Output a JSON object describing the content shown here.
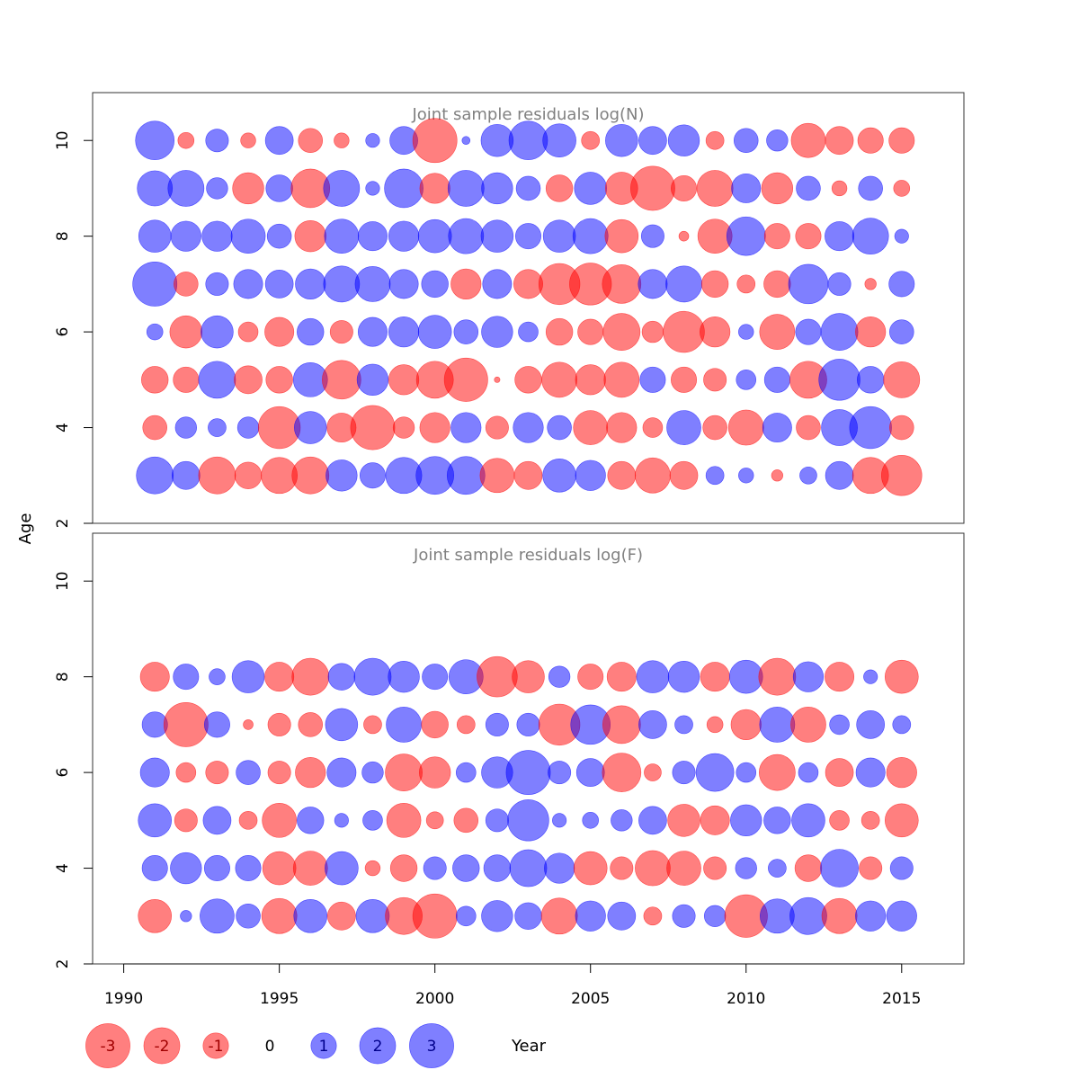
{
  "colors": {
    "negative": "#ff0000",
    "positive": "#0000ff",
    "frame": "#333333",
    "title": "#808080"
  },
  "chart_data": [
    {
      "type": "scatter",
      "subtype": "bubble",
      "title": "Joint sample residuals log(N)",
      "xlabel": "Year",
      "ylabel": "Age",
      "xlim": [
        1989,
        2017
      ],
      "ylim": [
        2,
        11
      ],
      "x_ticks": [
        "1990",
        "1995",
        "2000",
        "2005",
        "2010",
        "2015"
      ],
      "y_ticks": [
        "2",
        "4",
        "6",
        "8",
        "10"
      ],
      "years": [
        1991,
        1992,
        1993,
        1994,
        1995,
        1996,
        1997,
        1998,
        1999,
        2000,
        2001,
        2002,
        2003,
        2004,
        2005,
        2006,
        2007,
        2008,
        2009,
        2010,
        2011,
        2012,
        2013,
        2014,
        2015
      ],
      "residuals": {
        "10": [
          2.3,
          -0.4,
          0.8,
          -0.35,
          1.2,
          -0.9,
          -0.35,
          0.3,
          1.2,
          -3.0,
          0.1,
          1.6,
          2.3,
          1.7,
          -0.5,
          1.6,
          1.2,
          1.5,
          -0.5,
          0.9,
          0.7,
          -1.8,
          -1.2,
          -1.0,
          -1.0
        ],
        "9": [
          1.9,
          2.0,
          0.7,
          -1.5,
          1.1,
          -2.3,
          2.0,
          0.3,
          2.3,
          -1.4,
          2.0,
          1.5,
          0.9,
          -1.1,
          1.6,
          -1.6,
          -3.0,
          -1.0,
          -2.0,
          1.3,
          -1.5,
          0.9,
          -0.35,
          0.9,
          -0.4
        ],
        "8": [
          1.6,
          1.4,
          1.4,
          1.8,
          0.9,
          -1.5,
          1.8,
          1.3,
          1.4,
          1.7,
          1.9,
          1.6,
          1.0,
          1.6,
          1.9,
          -1.7,
          0.8,
          -0.15,
          -1.8,
          2.3,
          -1.0,
          -1.0,
          1.3,
          2.0,
          0.3
        ],
        "7": [
          3.0,
          -0.9,
          0.8,
          1.3,
          1.2,
          1.4,
          2.0,
          1.9,
          1.3,
          1.1,
          -1.4,
          1.3,
          -1.3,
          -2.6,
          -2.7,
          -2.3,
          1.3,
          2.0,
          -1.1,
          -0.5,
          -1.1,
          2.4,
          0.8,
          -0.2,
          1.0
        ],
        "6": [
          0.4,
          -1.6,
          1.6,
          -0.6,
          -1.3,
          1.1,
          -0.8,
          1.3,
          1.4,
          1.7,
          0.9,
          1.5,
          0.6,
          -1.1,
          -1.0,
          -2.1,
          -0.7,
          -2.6,
          -1.4,
          0.35,
          -1.9,
          1.0,
          2.1,
          -1.4,
          0.9
        ],
        "5": [
          -1.1,
          -1.0,
          2.1,
          -1.2,
          -1.1,
          1.8,
          -2.3,
          1.5,
          -1.4,
          -2.1,
          -2.9,
          -0.05,
          -1.1,
          -1.9,
          -1.4,
          -1.9,
          1.0,
          -1.0,
          -0.8,
          0.6,
          1.0,
          -2.1,
          2.6,
          1.1,
          -2.0
        ],
        "4": [
          -0.9,
          0.7,
          0.5,
          0.7,
          -2.7,
          1.6,
          -1.3,
          -3.0,
          -0.7,
          -1.4,
          1.4,
          -0.8,
          1.4,
          0.9,
          -1.8,
          -1.4,
          -0.6,
          1.8,
          -0.9,
          -1.9,
          1.3,
          -0.9,
          2.0,
          2.7,
          -0.9
        ],
        "3": [
          2.1,
          1.2,
          -2.1,
          -1.1,
          -2.0,
          -2.1,
          1.5,
          1.0,
          2.0,
          2.2,
          2.2,
          -1.8,
          -1.2,
          1.7,
          1.4,
          -1.2,
          -1.9,
          -1.2,
          0.5,
          0.35,
          -0.2,
          0.45,
          1.2,
          -2.0,
          -2.5
        ]
      }
    },
    {
      "type": "scatter",
      "subtype": "bubble",
      "title": "Joint sample residuals log(F)",
      "xlabel": "Year",
      "ylabel": "Age",
      "xlim": [
        1989,
        2017
      ],
      "ylim": [
        2,
        11
      ],
      "x_ticks": [
        "1990",
        "1995",
        "2000",
        "2005",
        "2010",
        "2015"
      ],
      "y_ticks": [
        "2",
        "4",
        "6",
        "8",
        "10"
      ],
      "years": [
        1991,
        1992,
        1993,
        1994,
        1995,
        1996,
        1997,
        1998,
        1999,
        2000,
        2001,
        2002,
        2003,
        2004,
        2005,
        2006,
        2007,
        2008,
        2009,
        2010,
        2011,
        2012,
        2013,
        2014,
        2015
      ],
      "residuals": {
        "8": [
          -1.3,
          1.0,
          0.4,
          1.6,
          -1.3,
          -2.1,
          1.1,
          2.1,
          1.5,
          1.0,
          1.8,
          -2.5,
          -1.6,
          0.7,
          -1.0,
          -1.3,
          1.6,
          1.5,
          -1.3,
          1.7,
          -2.1,
          1.4,
          -1.3,
          0.3,
          -1.7
        ],
        "7": [
          1.0,
          -3.0,
          1.0,
          -0.15,
          -0.8,
          -0.9,
          1.6,
          -0.5,
          1.9,
          -1.1,
          -0.5,
          0.8,
          0.8,
          -2.6,
          2.4,
          -2.2,
          1.2,
          0.5,
          -0.4,
          -1.4,
          1.9,
          -1.9,
          0.6,
          1.2,
          0.5
        ],
        "6": [
          1.3,
          -0.6,
          -0.8,
          0.9,
          -0.8,
          -1.4,
          1.3,
          0.7,
          -2.1,
          -1.5,
          0.6,
          1.5,
          3.0,
          0.8,
          1.2,
          -2.3,
          -0.45,
          0.8,
          2.2,
          0.6,
          -2.0,
          0.6,
          -1.2,
          1.3,
          -1.4
        ],
        "5": [
          1.7,
          -0.8,
          1.2,
          -0.5,
          -1.8,
          1.1,
          0.3,
          0.6,
          -1.8,
          -0.45,
          -0.9,
          0.8,
          2.6,
          0.3,
          0.4,
          0.7,
          1.2,
          -1.6,
          -1.3,
          1.5,
          1.1,
          1.7,
          -0.6,
          -0.5,
          -1.7
        ],
        "4": [
          1.0,
          1.5,
          1.0,
          1.0,
          -1.7,
          -1.8,
          1.7,
          -0.35,
          -1.1,
          0.8,
          1.1,
          1.1,
          2.1,
          1.4,
          -1.7,
          -0.8,
          -1.9,
          -1.8,
          -0.8,
          0.7,
          0.5,
          -1.1,
          2.2,
          -0.8,
          0.8
        ],
        "3": [
          -1.7,
          0.2,
          1.8,
          0.9,
          -1.9,
          1.7,
          -1.2,
          1.7,
          -2.1,
          -3.0,
          0.6,
          1.5,
          1.1,
          -2.0,
          1.4,
          1.2,
          -0.5,
          0.8,
          0.7,
          -2.8,
          1.8,
          2.1,
          -1.9,
          1.4,
          1.4
        ]
      }
    }
  ],
  "legend": {
    "items": [
      "-3",
      "-2",
      "-1",
      "0",
      "1",
      "2",
      "3"
    ],
    "values": [
      -3,
      -2,
      -1,
      0,
      1,
      2,
      3
    ],
    "year_label": "Year"
  }
}
